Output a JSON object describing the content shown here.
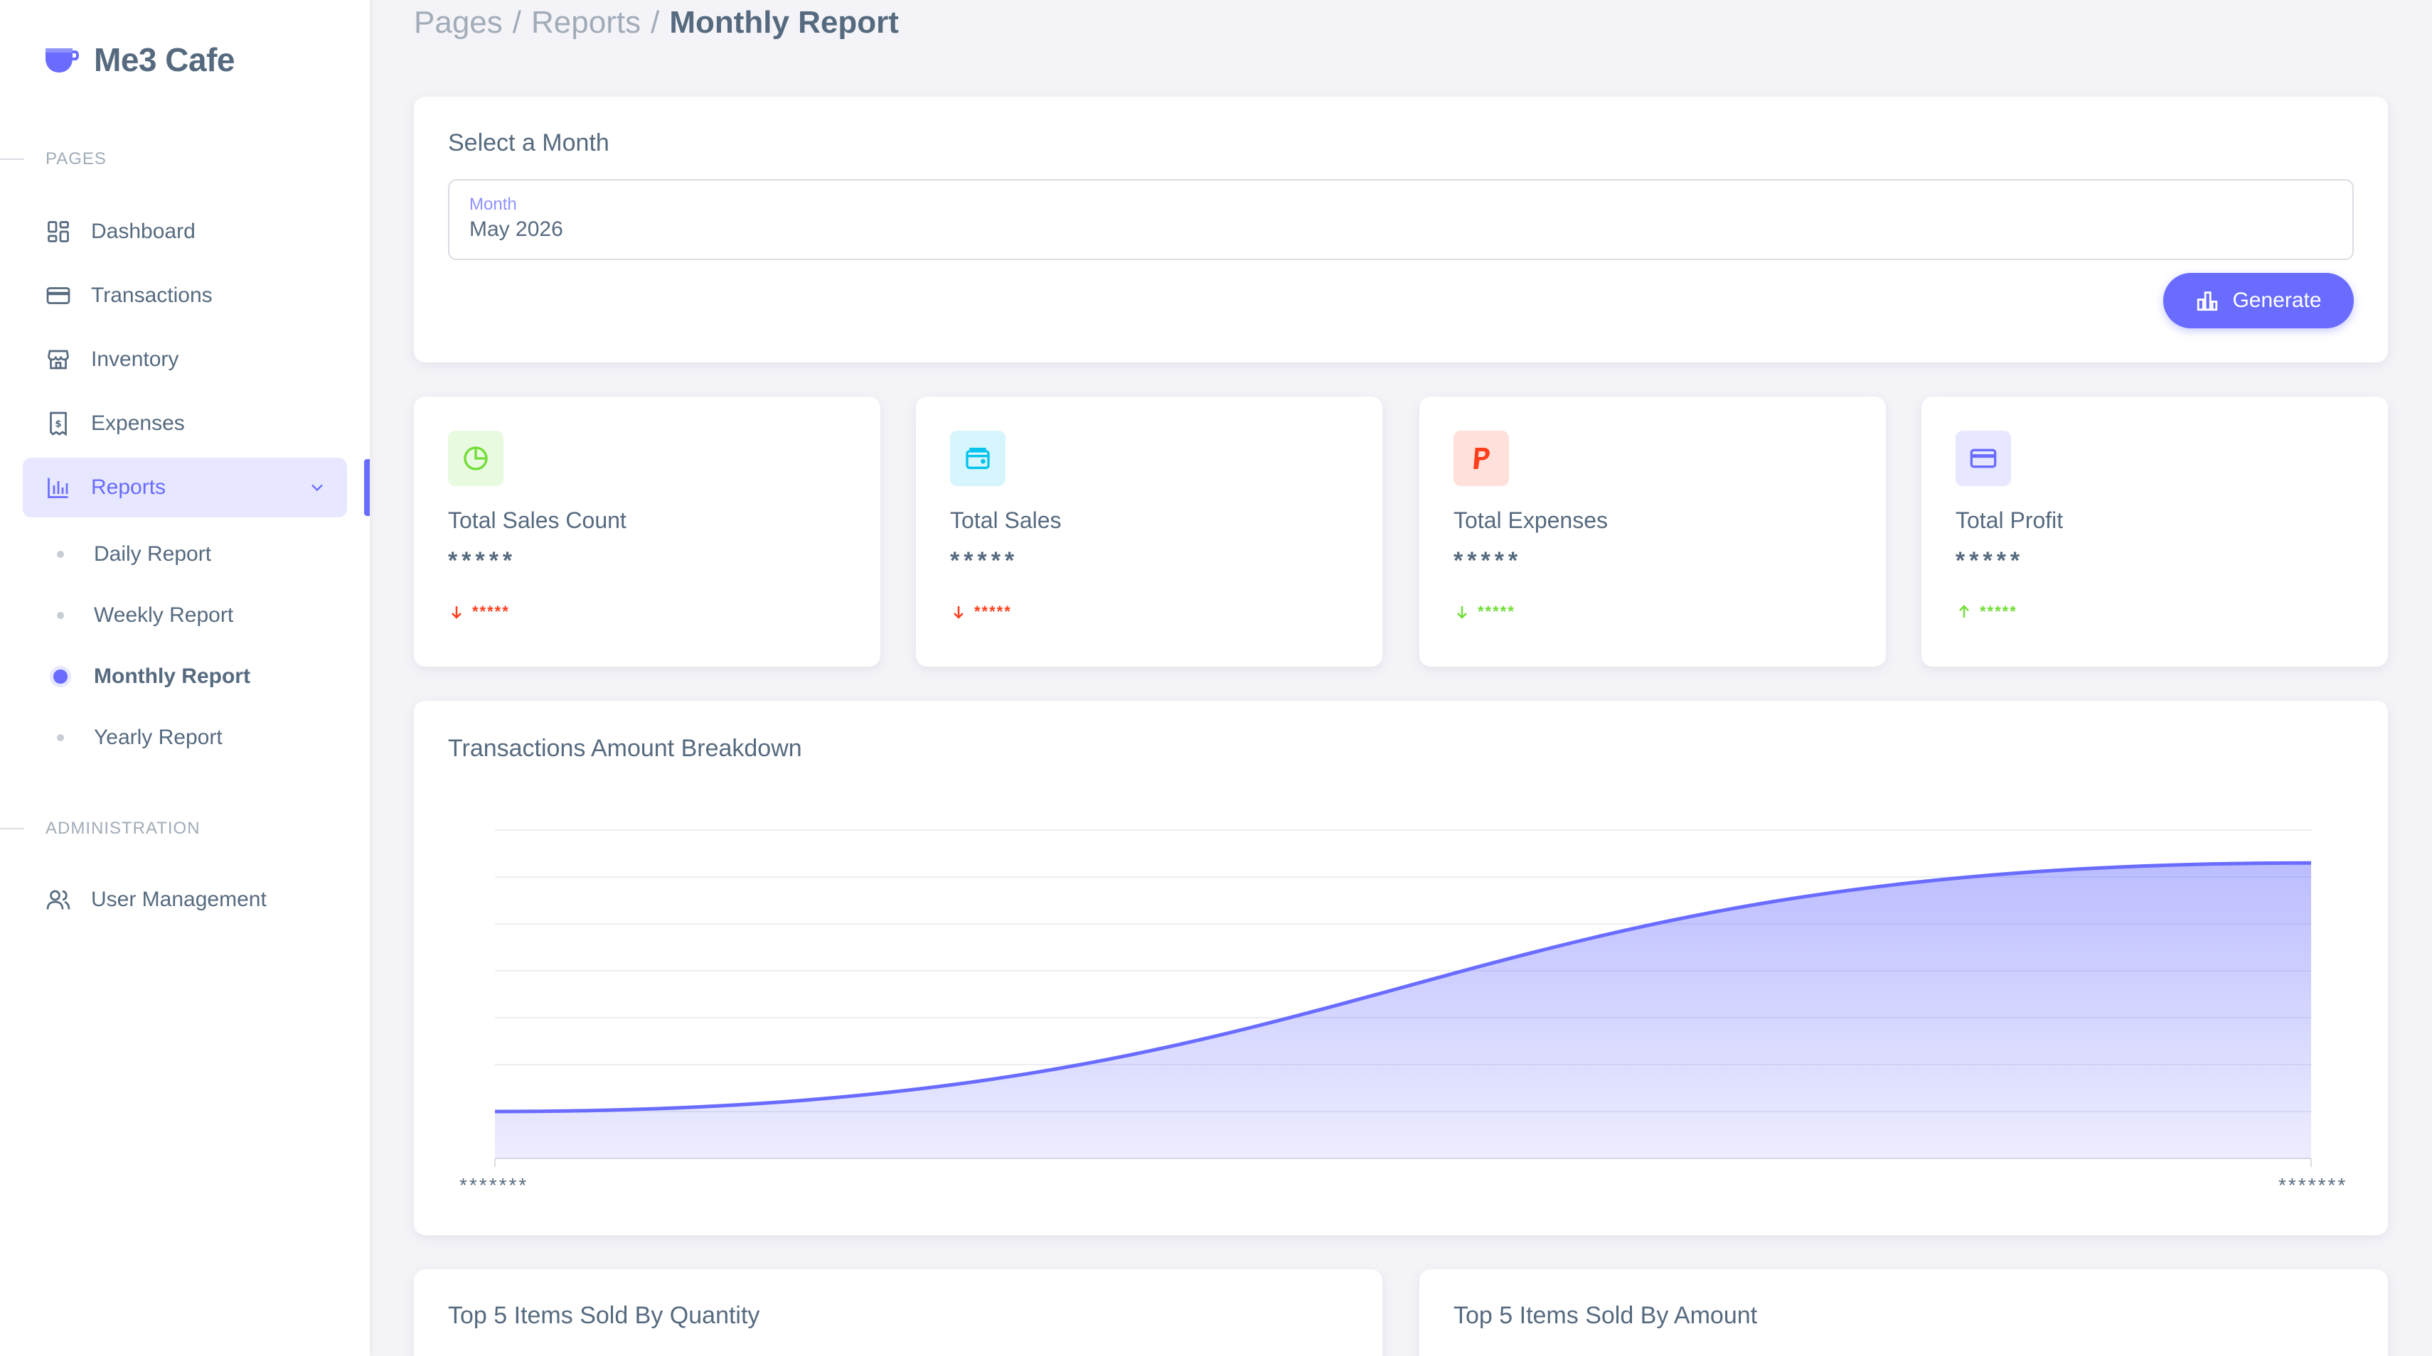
{
  "app": {
    "name": "Me3 Cafe",
    "colors": {
      "primary": "#696cff",
      "primary_light": "#e7e7ff",
      "success": "#71dd37",
      "danger": "#ff3e1d",
      "info": "#03c3ec"
    }
  },
  "sidebar": {
    "section_pages": "PAGES",
    "section_admin": "ADMINISTRATION",
    "items": [
      {
        "label": "Dashboard",
        "icon": "dashboard-icon"
      },
      {
        "label": "Transactions",
        "icon": "credit-card-icon"
      },
      {
        "label": "Inventory",
        "icon": "store-icon"
      },
      {
        "label": "Expenses",
        "icon": "receipt-icon"
      },
      {
        "label": "Reports",
        "icon": "bar-chart-icon",
        "active": true,
        "expanded": true
      }
    ],
    "reports_submenu": [
      {
        "label": "Daily Report"
      },
      {
        "label": "Weekly Report"
      },
      {
        "label": "Monthly Report",
        "active": true
      },
      {
        "label": "Yearly Report"
      }
    ],
    "admin_items": [
      {
        "label": "User Management",
        "icon": "users-icon"
      }
    ]
  },
  "breadcrumb": {
    "items": [
      "Pages",
      "Reports"
    ],
    "separator": "/",
    "current": "Monthly Report"
  },
  "month_selector": {
    "title": "Select a Month",
    "field_label": "Month",
    "value": "May 2026",
    "button_label": "Generate"
  },
  "stats": [
    {
      "label": "Total Sales Count",
      "value": "*****",
      "trend": "*****",
      "direction": "down",
      "icon": "pie-chart-icon",
      "icon_color": "#71dd37",
      "icon_bg": "#e8fadf"
    },
    {
      "label": "Total Sales",
      "value": "*****",
      "trend": "*****",
      "direction": "down",
      "icon": "wallet-icon",
      "icon_color": "#03c3ec",
      "icon_bg": "#d7f5fc"
    },
    {
      "label": "Total Expenses",
      "value": "*****",
      "trend": "*****",
      "direction": "down",
      "icon": "paypal-icon",
      "icon_color": "#ff3e1d",
      "icon_bg": "#ffe0db"
    },
    {
      "label": "Total Profit",
      "value": "*****",
      "trend": "*****",
      "direction": "up",
      "icon": "credit-card-icon",
      "icon_color": "#696cff",
      "icon_bg": "#e7e7ff"
    }
  ],
  "breakdown": {
    "title": "Transactions Amount Breakdown",
    "x_start_label": "*******",
    "x_end_label": "*******"
  },
  "chart_data": {
    "type": "area",
    "title": "Transactions Amount Breakdown",
    "x": [
      "*******",
      "*******"
    ],
    "series": [
      {
        "values": [
          1,
          6.3
        ]
      }
    ],
    "ylim": [
      0,
      7
    ],
    "grid": true,
    "curve": "smooth"
  },
  "bottom_cards": {
    "quantity_title": "Top 5 Items Sold By Quantity",
    "amount_title": "Top 5 Items Sold By Amount"
  }
}
